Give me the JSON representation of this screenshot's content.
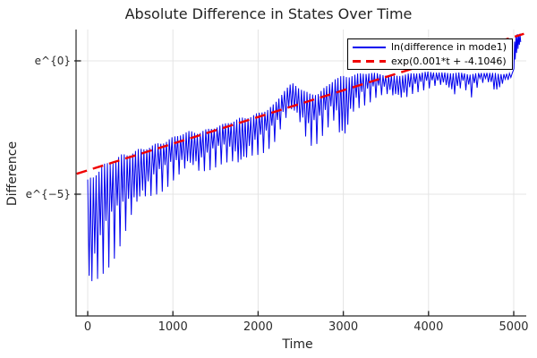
{
  "figure": {
    "background": "#ffffff"
  },
  "chart_data": {
    "type": "line",
    "title": "Absolute Difference in States Over Time",
    "xlabel": "Time",
    "ylabel": "Difference",
    "y_scale": "log-e",
    "x_ticks": [
      0,
      1000,
      2000,
      3000,
      4000,
      5000
    ],
    "y_ticks": [
      {
        "label": "e^{0}",
        "value_ln": 0
      },
      {
        "label": "e^{−5}",
        "value_ln": -5
      }
    ],
    "x_range": [
      -137,
      5147
    ],
    "y_range_ln": [
      -9.56,
      1.17
    ],
    "grid": true,
    "legend_position": "top-right",
    "style": {
      "grid_color": "#e4e4e4",
      "axis_color": "#2a2a2a",
      "tick_label_color": "#2b2b2b",
      "text_color": "#232323",
      "background": "#ffffff"
    },
    "series": [
      {
        "name": "ln(difference in mode1)",
        "color": "#0000ee",
        "style": "solid",
        "description": "rapidly oscillating absolute difference on ln scale; values given as envelope of oscillation",
        "oscillation_period_t": 33,
        "envelope_t": [
          0,
          100,
          200,
          300,
          400,
          500,
          600,
          700,
          800,
          900,
          1000,
          1100,
          1200,
          1300,
          1400,
          1500,
          1600,
          1700,
          1800,
          1900,
          2000,
          2100,
          2200,
          2300,
          2400,
          2500,
          2600,
          2700,
          2800,
          2900,
          3000,
          3100,
          3200,
          3300,
          3400,
          3500,
          3600,
          3700,
          3800,
          3900,
          4000,
          4100,
          4200,
          4300,
          4400,
          4500,
          4600,
          4700,
          4800,
          4900,
          5000
        ],
        "envelope_top_ln": [
          -4.45,
          -4.05,
          -3.85,
          -3.65,
          -3.5,
          -3.4,
          -3.3,
          -3.2,
          -3.1,
          -3.0,
          -2.85,
          -2.7,
          -2.62,
          -2.66,
          -2.55,
          -2.45,
          -2.35,
          -2.22,
          -2.12,
          -2.05,
          -1.95,
          -1.8,
          -1.58,
          -1.1,
          -0.82,
          -1.0,
          -1.22,
          -1.18,
          -0.95,
          -0.62,
          -0.55,
          -0.5,
          -0.46,
          -0.42,
          -0.46,
          -0.52,
          -0.55,
          -0.5,
          -0.46,
          -0.43,
          -0.4,
          -0.42,
          -0.44,
          -0.42,
          -0.45,
          -0.48,
          -0.45,
          -0.43,
          -0.46,
          -0.48,
          -0.45
        ],
        "envelope_bottom_ln": [
          -9.55,
          -8.8,
          -8.05,
          -7.5,
          -6.9,
          -6.2,
          -5.7,
          -5.35,
          -5.1,
          -4.85,
          -4.55,
          -4.35,
          -4.2,
          -4.35,
          -4.2,
          -4.0,
          -3.85,
          -3.95,
          -4.3,
          -3.8,
          -3.6,
          -3.4,
          -3.05,
          -2.4,
          -2.05,
          -2.6,
          -3.3,
          -3.1,
          -2.6,
          -2.35,
          -3.7,
          -2.2,
          -1.8,
          -1.6,
          -1.35,
          -1.3,
          -1.5,
          -1.6,
          -1.3,
          -1.15,
          -1.05,
          -0.95,
          -1.0,
          -1.45,
          -0.95,
          -1.4,
          -0.85,
          -0.82,
          -1.35,
          -0.78,
          -0.7
        ],
        "final_spike_t_ln": [
          [
            5002,
            -0.3
          ],
          [
            5010,
            0.72
          ],
          [
            5018,
            0.05
          ],
          [
            5026,
            0.95
          ],
          [
            5034,
            0.3
          ],
          [
            5042,
            1.0
          ],
          [
            5050,
            0.45
          ],
          [
            5058,
            0.92
          ],
          [
            5066,
            0.6
          ],
          [
            5074,
            1.02
          ],
          [
            5082,
            0.7
          ]
        ]
      },
      {
        "name": "exp(0.001*t + -4.1046)",
        "color": "#f00000",
        "style": "dashed",
        "fit": {
          "slope": 0.001,
          "intercept": -4.1046
        },
        "t_range": [
          -130,
          5120
        ]
      }
    ]
  }
}
